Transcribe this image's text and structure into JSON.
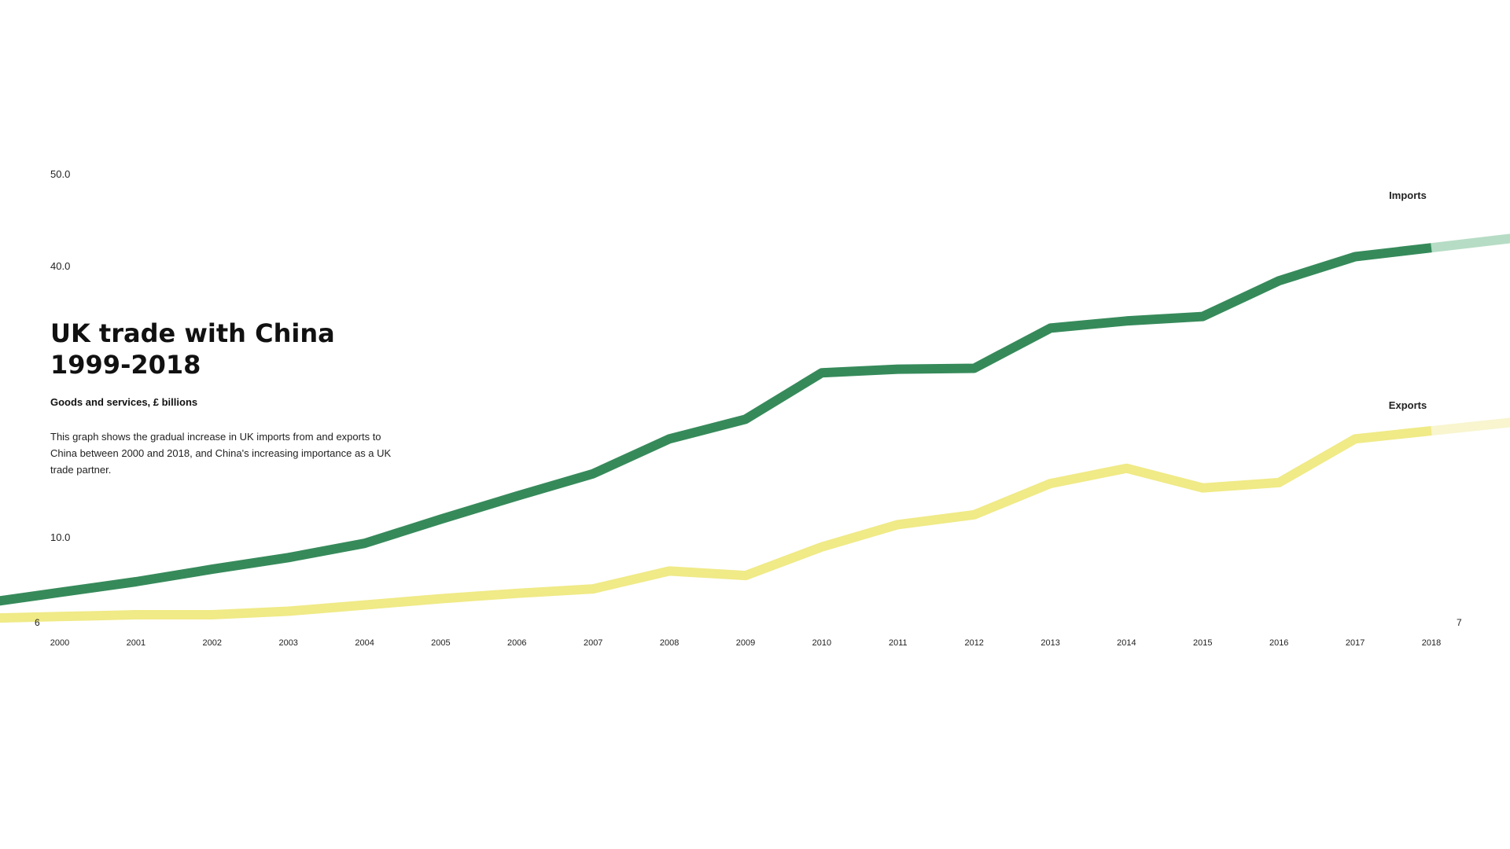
{
  "page": {
    "left_page_number": "6",
    "right_page_number": "7"
  },
  "colors": {
    "imports": "#368a5a",
    "imports_fade": "#b6dcc5",
    "exports": "#f0ea87",
    "exports_fade": "#f8f5cf",
    "text": "#222222",
    "background": "#ffffff"
  },
  "chart_data": {
    "type": "line",
    "title": "UK trade with China 1999-2018",
    "title_lines": [
      "UK trade with China",
      "1999-2018"
    ],
    "subtitle": "Goods and services, £ billions",
    "description": "This graph shows the gradual increase in UK imports from and exports to China between 2000 and 2018, and China's increasing importance as a UK trade partner.",
    "categories": [
      "2000",
      "2001",
      "2002",
      "2003",
      "2004",
      "2005",
      "2006",
      "2007",
      "2008",
      "2009",
      "2010",
      "2011",
      "2012",
      "2013",
      "2014",
      "2015",
      "2016",
      "2017",
      "2018"
    ],
    "y_ticks": [
      "50.0",
      "40.0",
      "10.0"
    ],
    "ylim": [
      0,
      50
    ],
    "grid": false,
    "series": [
      {
        "name": "Imports",
        "values": [
          3.2,
          4.4,
          5.8,
          7.1,
          8.7,
          11.4,
          14.0,
          16.5,
          20.4,
          22.6,
          27.8,
          28.2,
          28.3,
          32.8,
          33.6,
          34.1,
          38.1,
          40.8,
          41.8
        ]
      },
      {
        "name": "Exports",
        "values": [
          0.5,
          0.7,
          0.7,
          1.1,
          1.8,
          2.5,
          3.1,
          3.6,
          5.6,
          5.1,
          8.3,
          10.8,
          11.9,
          15.4,
          17.1,
          14.9,
          15.5,
          20.4,
          21.3
        ]
      }
    ]
  }
}
